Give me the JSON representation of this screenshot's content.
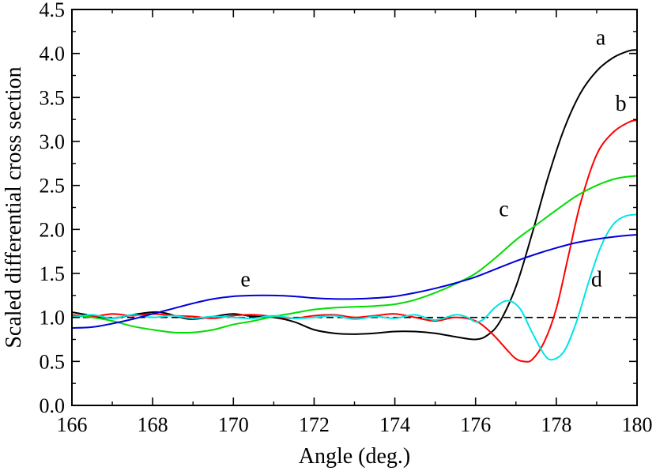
{
  "chart_data": {
    "type": "line",
    "title": "",
    "xlabel": "Angle (deg.)",
    "ylabel": "Scaled differential cross section",
    "xlim": [
      166,
      180
    ],
    "ylim": [
      0.0,
      4.5
    ],
    "xticks": [
      166,
      168,
      170,
      172,
      174,
      176,
      178,
      180
    ],
    "yticks": [
      0.0,
      0.5,
      1.0,
      1.5,
      2.0,
      2.5,
      3.0,
      3.5,
      4.0,
      4.5
    ],
    "xtick_labels": [
      "166",
      "168",
      "170",
      "172",
      "174",
      "176",
      "178",
      "180"
    ],
    "ytick_labels": [
      "0.0",
      "0.5",
      "1.0",
      "1.5",
      "2.0",
      "2.5",
      "3.0",
      "3.5",
      "4.0",
      "4.5"
    ],
    "grid": false,
    "reference_line": {
      "y": 1.0,
      "style": "dashed",
      "color": "#000000"
    },
    "series": [
      {
        "name": "a",
        "color": "#000000",
        "label_at": [
          179.1,
          4.1
        ],
        "x": [
          166.0,
          166.5,
          167.0,
          167.5,
          168.0,
          168.3,
          168.7,
          169.0,
          169.5,
          170.0,
          170.5,
          171.0,
          171.5,
          172.0,
          172.5,
          173.0,
          173.5,
          174.0,
          174.5,
          175.0,
          175.5,
          176.0,
          176.3,
          176.6,
          177.0,
          177.4,
          177.8,
          178.2,
          178.6,
          179.0,
          179.4,
          179.8,
          180.0
        ],
        "y": [
          1.06,
          1.02,
          0.99,
          1.03,
          1.06,
          1.05,
          1.0,
          0.98,
          1.01,
          1.04,
          1.01,
          1.0,
          0.95,
          0.86,
          0.82,
          0.81,
          0.82,
          0.84,
          0.84,
          0.82,
          0.78,
          0.75,
          0.8,
          0.95,
          1.35,
          1.95,
          2.6,
          3.15,
          3.55,
          3.8,
          3.95,
          4.03,
          4.04
        ]
      },
      {
        "name": "b",
        "color": "#ff0000",
        "label_at": [
          179.6,
          3.35
        ],
        "x": [
          166.0,
          166.5,
          167.0,
          167.5,
          168.0,
          168.5,
          169.0,
          169.5,
          170.0,
          170.5,
          171.0,
          171.5,
          172.0,
          172.5,
          173.0,
          173.5,
          174.0,
          174.5,
          175.0,
          175.5,
          176.0,
          176.4,
          176.8,
          177.0,
          177.2,
          177.4,
          177.7,
          178.0,
          178.3,
          178.6,
          179.0,
          179.4,
          179.8,
          180.0
        ],
        "y": [
          1.03,
          1.01,
          1.04,
          1.02,
          1.04,
          1.02,
          1.01,
          0.99,
          1.02,
          1.03,
          1.01,
          0.99,
          1.02,
          1.03,
          1.0,
          1.02,
          1.04,
          1.0,
          0.96,
          1.0,
          0.96,
          0.82,
          0.62,
          0.53,
          0.5,
          0.52,
          0.72,
          1.1,
          1.7,
          2.3,
          2.85,
          3.1,
          3.22,
          3.24
        ]
      },
      {
        "name": "c",
        "color": "#00dd00",
        "label_at": [
          176.7,
          2.15
        ],
        "x": [
          166.0,
          166.5,
          167.0,
          167.5,
          168.0,
          168.5,
          169.0,
          169.5,
          170.0,
          170.5,
          171.0,
          171.5,
          172.0,
          172.5,
          173.0,
          173.5,
          174.0,
          174.5,
          175.0,
          175.5,
          176.0,
          176.5,
          177.0,
          177.5,
          178.0,
          178.5,
          179.0,
          179.5,
          180.0
        ],
        "y": [
          1.02,
          1.0,
          0.96,
          0.9,
          0.86,
          0.83,
          0.83,
          0.86,
          0.92,
          0.96,
          1.01,
          1.05,
          1.09,
          1.11,
          1.12,
          1.13,
          1.15,
          1.2,
          1.28,
          1.38,
          1.5,
          1.68,
          1.88,
          2.05,
          2.22,
          2.38,
          2.5,
          2.58,
          2.61
        ]
      },
      {
        "name": "d",
        "color": "#00e5e5",
        "label_at": [
          179.0,
          1.35
        ],
        "x": [
          166.0,
          166.5,
          167.0,
          167.5,
          168.0,
          168.5,
          169.0,
          169.5,
          170.0,
          170.5,
          171.0,
          171.5,
          172.0,
          172.5,
          173.0,
          173.5,
          174.0,
          174.5,
          175.0,
          175.5,
          175.8,
          176.0,
          176.2,
          176.5,
          176.8,
          177.1,
          177.4,
          177.7,
          177.9,
          178.2,
          178.5,
          178.8,
          179.1,
          179.4,
          179.7,
          180.0
        ],
        "y": [
          1.0,
          1.03,
          0.99,
          1.03,
          1.0,
          1.02,
          0.99,
          1.01,
          1.0,
          0.99,
          1.02,
          0.99,
          1.0,
          1.02,
          0.98,
          1.01,
          0.99,
          1.03,
          0.97,
          1.03,
          1.0,
          0.95,
          0.98,
          1.12,
          1.19,
          1.1,
          0.83,
          0.58,
          0.52,
          0.62,
          0.95,
          1.4,
          1.8,
          2.05,
          2.15,
          2.17
        ]
      },
      {
        "name": "e",
        "color": "#0000dd",
        "label_at": [
          170.3,
          1.35
        ],
        "x": [
          166.0,
          166.5,
          167.0,
          167.5,
          168.0,
          168.5,
          169.0,
          169.5,
          170.0,
          170.5,
          171.0,
          171.5,
          172.0,
          172.5,
          173.0,
          173.5,
          174.0,
          174.5,
          175.0,
          175.5,
          176.0,
          176.5,
          177.0,
          177.5,
          178.0,
          178.5,
          179.0,
          179.5,
          180.0
        ],
        "y": [
          0.88,
          0.89,
          0.93,
          0.98,
          1.04,
          1.1,
          1.16,
          1.21,
          1.24,
          1.25,
          1.25,
          1.24,
          1.22,
          1.21,
          1.21,
          1.22,
          1.24,
          1.28,
          1.33,
          1.39,
          1.46,
          1.55,
          1.64,
          1.72,
          1.79,
          1.85,
          1.89,
          1.92,
          1.94
        ]
      }
    ]
  }
}
